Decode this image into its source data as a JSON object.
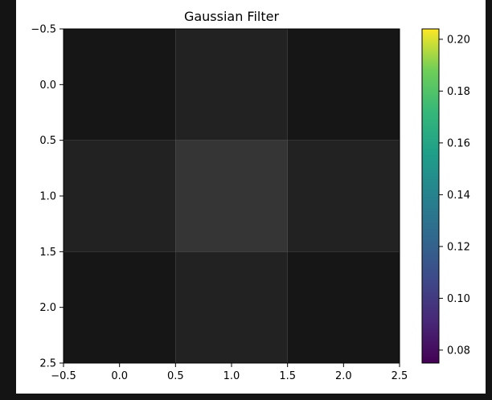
{
  "chart_data": {
    "type": "heatmap",
    "title": "Gaussian Filter",
    "xlabel": "",
    "ylabel": "",
    "xlim": [
      -0.5,
      2.5
    ],
    "ylim": [
      2.5,
      -0.5
    ],
    "x_ticks": [
      "−0.5",
      "0.0",
      "0.5",
      "1.0",
      "1.5",
      "2.0",
      "2.5"
    ],
    "y_ticks": [
      "−0.5",
      "0.0",
      "0.5",
      "1.0",
      "1.5",
      "2.0",
      "2.5"
    ],
    "x_tick_values": [
      -0.5,
      0.0,
      0.5,
      1.0,
      1.5,
      2.0,
      2.5
    ],
    "y_tick_values": [
      -0.5,
      0.0,
      0.5,
      1.0,
      1.5,
      2.0,
      2.5
    ],
    "z": [
      [
        0.075,
        0.124,
        0.075
      ],
      [
        0.124,
        0.204,
        0.124
      ],
      [
        0.075,
        0.124,
        0.075
      ]
    ],
    "cell_colors": [
      [
        "#161616",
        "#222222",
        "#161616"
      ],
      [
        "#222222",
        "#353535",
        "#222222"
      ],
      [
        "#161616",
        "#222222",
        "#161616"
      ]
    ],
    "colorbar": {
      "colormap": "viridis",
      "range": [
        0.075,
        0.204
      ],
      "ticks": [
        "0.08",
        "0.10",
        "0.12",
        "0.14",
        "0.16",
        "0.18",
        "0.20"
      ],
      "tick_values": [
        0.08,
        0.1,
        0.12,
        0.14,
        0.16,
        0.18,
        0.2
      ]
    },
    "grid": false
  }
}
